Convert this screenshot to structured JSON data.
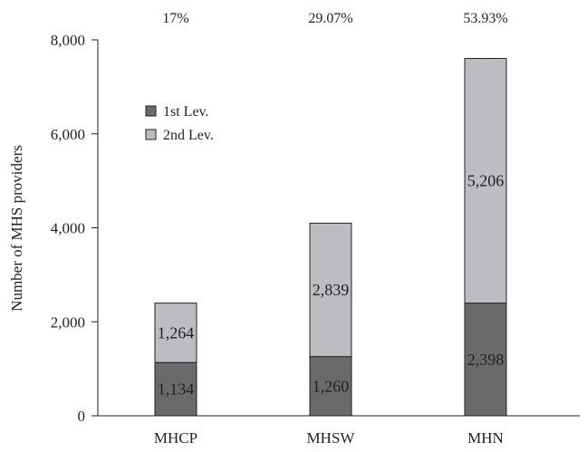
{
  "chart_data": {
    "type": "bar",
    "stacked": true,
    "categories": [
      "MHCP",
      "MHSW",
      "MHN"
    ],
    "series": [
      {
        "name": "1st Lev.",
        "values": [
          1134,
          1260,
          2398
        ],
        "labels": [
          "1,134",
          "1,260",
          "2,398"
        ],
        "color": "#6a6a6c"
      },
      {
        "name": "2nd Lev.",
        "values": [
          1264,
          2839,
          5206
        ],
        "labels": [
          "1,264",
          "2,839",
          "5,206"
        ],
        "color": "#bcbdc0"
      }
    ],
    "percent_labels": [
      "17%",
      "29.07%",
      "53.93%"
    ],
    "ylabel": "Number of MHS providers",
    "xlabel": "",
    "ylim": [
      0,
      8000
    ],
    "yticks": [
      0,
      2000,
      4000,
      6000,
      8000
    ],
    "ytick_labels": [
      "0",
      "2,000",
      "4,000",
      "6,000",
      "8,000"
    ],
    "grid": false,
    "legend_position": "upper-left"
  }
}
